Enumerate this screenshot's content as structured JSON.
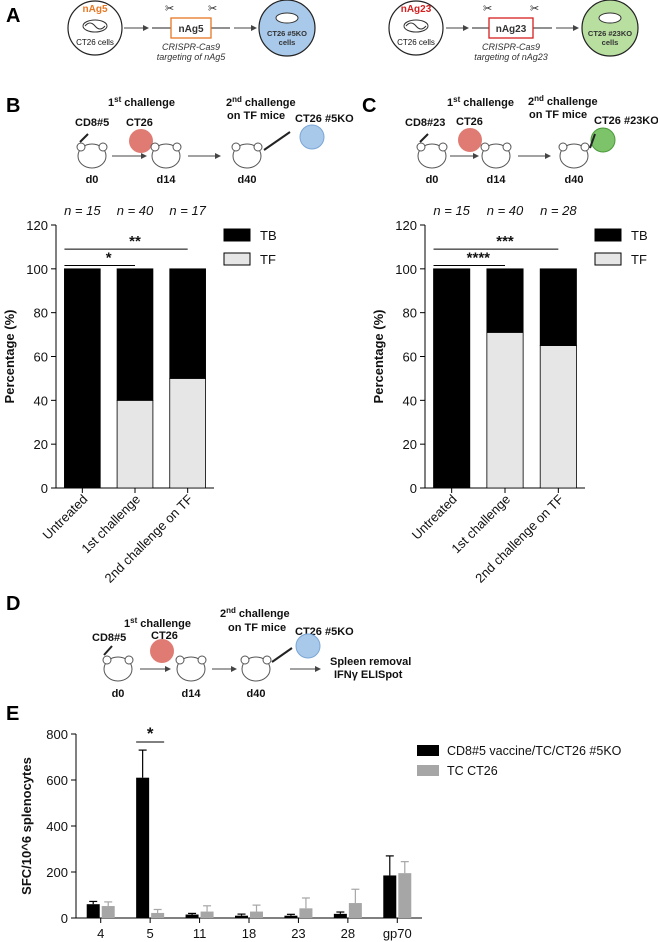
{
  "panels": {
    "A": {
      "label": "A",
      "cell1_tag": "nAg5",
      "cell1_name": "CT26 cells",
      "gene1": "nAg5",
      "crispr1_line1": "CRISPR-Cas9",
      "crispr1_line2": "targeting of nAg5",
      "ko1_line1": "CT26 #5KO",
      "ko1_line2": "cells",
      "cell2_tag": "nAg23",
      "cell2_name": "CT26 cells",
      "gene2": "nAg23",
      "crispr2_line1": "CRISPR-Cas9",
      "crispr2_line2": "targeting of nAg23",
      "ko2_line1": "CT26 #23KO",
      "ko2_line2": "cells"
    },
    "B": {
      "label": "B",
      "vaccine": "CD8#5",
      "first_sup": "st",
      "first": "1",
      "first_text": "challenge",
      "challenge1": "CT26",
      "second": "2",
      "second_sup": "nd",
      "second_text": "challenge",
      "second_line2": "on TF mice",
      "challenge2": "CT26 #5KO",
      "d0": "d0",
      "d14": "d14",
      "d40": "d40"
    },
    "C": {
      "label": "C",
      "vaccine": "CD8#23",
      "first_sup": "st",
      "first": "1",
      "first_text": "challenge",
      "challenge1": "CT26",
      "second": "2",
      "second_sup": "nd",
      "second_text": "challenge",
      "second_line2": "on TF mice",
      "challenge2": "CT26 #23KO",
      "d0": "d0",
      "d14": "d14",
      "d40": "d40"
    },
    "D": {
      "label": "D",
      "vaccine": "CD8#5",
      "first_sup": "st",
      "first": "1",
      "first_text": "challenge",
      "challenge1": "CT26",
      "second": "2",
      "second_sup": "nd",
      "second_text": "challenge",
      "second_line2": "on TF mice",
      "challenge2": "CT26 #5KO",
      "d0": "d0",
      "d14": "d14",
      "d40": "d40",
      "readout1": "Spleen removal",
      "readout2": "IFNγ ELISpot"
    },
    "E": {
      "label": "E"
    }
  },
  "colors": {
    "tb": "#000000",
    "tf": "#e6e6e6",
    "series1": "#000000",
    "series2": "#a6a6a6",
    "ko5": "#a9c9ea",
    "ko23": "#b8dea0",
    "ct26": "#d9645a",
    "orange": "#e87722",
    "red": "#d62020"
  },
  "chart_data": [
    {
      "type": "bar",
      "panel": "B",
      "stacked": true,
      "categories": [
        "Untreated",
        "1st challenge",
        "2nd challenge on TF"
      ],
      "n_labels": [
        "n = 15",
        "n = 40",
        "n = 17"
      ],
      "series": [
        {
          "name": "TB",
          "values": [
            100,
            60,
            50
          ]
        },
        {
          "name": "TF",
          "values": [
            0,
            40,
            50
          ]
        }
      ],
      "ylabel": "Percentage (%)",
      "ylim": [
        0,
        120
      ],
      "yticks": [
        0,
        20,
        40,
        60,
        80,
        100,
        120
      ],
      "significance": [
        {
          "from": 0,
          "to": 1,
          "label": "*"
        },
        {
          "from": 0,
          "to": 2,
          "label": "**"
        }
      ],
      "legend": "top-right"
    },
    {
      "type": "bar",
      "panel": "C",
      "stacked": true,
      "categories": [
        "Untreated",
        "1st challenge",
        "2nd challenge on TF"
      ],
      "n_labels": [
        "n = 15",
        "n = 40",
        "n = 28"
      ],
      "series": [
        {
          "name": "TB",
          "values": [
            100,
            29,
            35
          ]
        },
        {
          "name": "TF",
          "values": [
            0,
            71,
            65
          ]
        }
      ],
      "ylabel": "Percentage (%)",
      "ylim": [
        0,
        120
      ],
      "yticks": [
        0,
        20,
        40,
        60,
        80,
        100,
        120
      ],
      "significance": [
        {
          "from": 0,
          "to": 1,
          "label": "****"
        },
        {
          "from": 0,
          "to": 2,
          "label": "***"
        }
      ],
      "legend": "top-right"
    },
    {
      "type": "bar",
      "panel": "E",
      "categories": [
        "4",
        "5",
        "11",
        "18",
        "23",
        "28",
        "gp70"
      ],
      "series": [
        {
          "name": "CD8#5 vaccine/TC/CT26 #5KO",
          "values": [
            60,
            610,
            15,
            10,
            10,
            18,
            185
          ],
          "errors": [
            12,
            120,
            5,
            7,
            6,
            8,
            85
          ]
        },
        {
          "name": "TC CT26",
          "values": [
            52,
            22,
            28,
            28,
            42,
            65,
            195
          ],
          "errors": [
            18,
            15,
            25,
            28,
            45,
            60,
            50
          ]
        }
      ],
      "ylabel": "SFC/10^6 splenocytes",
      "ylim": [
        0,
        800
      ],
      "yticks": [
        0,
        200,
        400,
        600,
        800
      ],
      "significance": [
        {
          "category": 1,
          "label": "*"
        }
      ],
      "legend": "top-right"
    }
  ]
}
